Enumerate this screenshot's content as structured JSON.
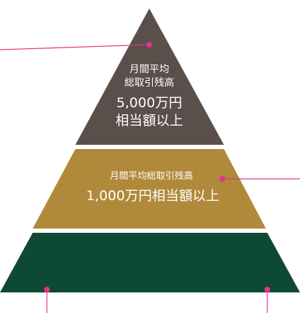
{
  "pyramid": {
    "tiers": [
      {
        "id": "top",
        "label_lines": [
          "月間平均",
          "総取引残高"
        ],
        "amount_lines": [
          "5,000万円",
          "相当額以上"
        ],
        "color": "#5a4f4a"
      },
      {
        "id": "middle",
        "label_lines": [
          "月間平均総取引残高"
        ],
        "amount_lines": [
          "1,000万円相当額以上"
        ],
        "color": "#b08a3a"
      },
      {
        "id": "bottom",
        "label_lines": [],
        "amount_lines": [],
        "color": "#0e4a33"
      }
    ],
    "callout_color": "#e4328c"
  }
}
